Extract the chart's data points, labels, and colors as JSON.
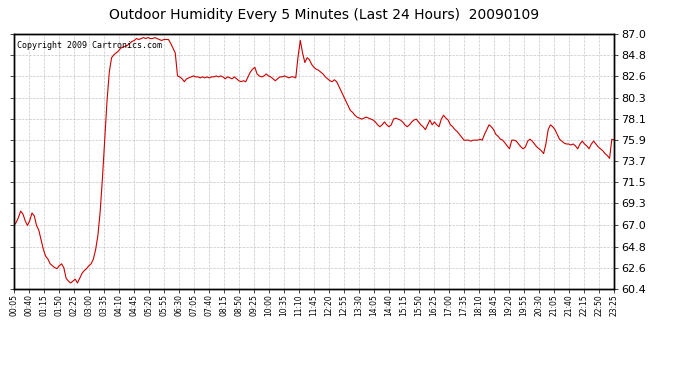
{
  "title": "Outdoor Humidity Every 5 Minutes (Last 24 Hours)  20090109",
  "copyright": "Copyright 2009 Cartronics.com",
  "background_color": "#ffffff",
  "plot_bg_color": "#ffffff",
  "line_color": "#cc0000",
  "grid_color": "#b0b0b0",
  "y_ticks": [
    60.4,
    62.6,
    64.8,
    67.0,
    69.3,
    71.5,
    73.7,
    75.9,
    78.1,
    80.3,
    82.6,
    84.8,
    87.0
  ],
  "ylim": [
    60.4,
    87.0
  ],
  "x_labels": [
    "00:05",
    "00:40",
    "01:15",
    "01:50",
    "02:25",
    "03:00",
    "03:35",
    "04:10",
    "04:45",
    "05:20",
    "05:55",
    "06:30",
    "07:05",
    "07:40",
    "08:15",
    "08:50",
    "09:25",
    "10:00",
    "10:35",
    "11:10",
    "11:45",
    "12:20",
    "12:55",
    "13:30",
    "14:05",
    "14:40",
    "15:15",
    "15:50",
    "16:25",
    "17:00",
    "17:35",
    "18:10",
    "18:45",
    "19:20",
    "19:55",
    "20:30",
    "21:05",
    "21:40",
    "22:15",
    "22:50",
    "23:25"
  ],
  "humidity_data": [
    67.0,
    67.3,
    67.8,
    68.5,
    68.2,
    67.5,
    67.0,
    67.5,
    68.3,
    68.0,
    67.0,
    66.5,
    65.5,
    64.5,
    63.8,
    63.5,
    63.0,
    62.8,
    62.6,
    62.5,
    62.8,
    63.0,
    62.6,
    61.5,
    61.2,
    61.0,
    61.2,
    61.4,
    61.0,
    61.5,
    62.0,
    62.3,
    62.5,
    62.8,
    63.0,
    63.5,
    64.5,
    66.0,
    68.5,
    72.0,
    76.0,
    80.0,
    83.0,
    84.5,
    84.8,
    85.0,
    85.2,
    85.5,
    85.6,
    85.7,
    85.8,
    86.0,
    86.2,
    86.3,
    86.5,
    86.4,
    86.5,
    86.6,
    86.5,
    86.6,
    86.5,
    86.5,
    86.6,
    86.5,
    86.4,
    86.3,
    86.4,
    86.4,
    86.4,
    86.0,
    85.5,
    85.0,
    82.6,
    82.5,
    82.3,
    82.0,
    82.3,
    82.4,
    82.5,
    82.6,
    82.5,
    82.5,
    82.4,
    82.5,
    82.4,
    82.5,
    82.4,
    82.5,
    82.5,
    82.6,
    82.5,
    82.6,
    82.5,
    82.3,
    82.5,
    82.4,
    82.3,
    82.5,
    82.3,
    82.1,
    82.0,
    82.1,
    82.0,
    82.5,
    83.0,
    83.3,
    83.5,
    82.8,
    82.6,
    82.5,
    82.6,
    82.8,
    82.6,
    82.5,
    82.3,
    82.1,
    82.3,
    82.5,
    82.5,
    82.6,
    82.5,
    82.4,
    82.5,
    82.5,
    82.4,
    84.6,
    86.3,
    85.0,
    84.0,
    84.5,
    84.3,
    83.8,
    83.5,
    83.3,
    83.2,
    83.0,
    82.8,
    82.5,
    82.3,
    82.1,
    82.0,
    82.2,
    82.0,
    81.5,
    81.0,
    80.5,
    80.0,
    79.5,
    79.0,
    78.8,
    78.5,
    78.3,
    78.2,
    78.1,
    78.2,
    78.3,
    78.2,
    78.1,
    78.0,
    77.8,
    77.5,
    77.3,
    77.5,
    77.8,
    77.5,
    77.3,
    77.5,
    78.1,
    78.2,
    78.1,
    78.0,
    77.8,
    77.5,
    77.3,
    77.5,
    77.8,
    78.0,
    78.1,
    77.8,
    77.5,
    77.3,
    77.0,
    77.5,
    78.0,
    77.5,
    77.8,
    77.5,
    77.3,
    78.1,
    78.5,
    78.2,
    78.0,
    77.5,
    77.3,
    77.0,
    76.8,
    76.5,
    76.2,
    75.9,
    75.9,
    75.9,
    75.8,
    75.9,
    75.9,
    75.9,
    76.0,
    75.9,
    76.5,
    77.0,
    77.5,
    77.3,
    77.0,
    76.5,
    76.3,
    76.0,
    75.9,
    75.6,
    75.3,
    75.0,
    75.9,
    75.9,
    75.8,
    75.5,
    75.2,
    75.0,
    75.2,
    75.8,
    76.0,
    75.8,
    75.5,
    75.2,
    75.0,
    74.8,
    74.5,
    75.5,
    77.0,
    77.5,
    77.3,
    77.0,
    76.5,
    76.0,
    75.8,
    75.6,
    75.5,
    75.5,
    75.4,
    75.5,
    75.3,
    75.0,
    75.5,
    75.8,
    75.5,
    75.3,
    75.0,
    75.5,
    75.8,
    75.5,
    75.2,
    75.0,
    74.8,
    74.5,
    74.3,
    74.0,
    76.0,
    75.9
  ]
}
